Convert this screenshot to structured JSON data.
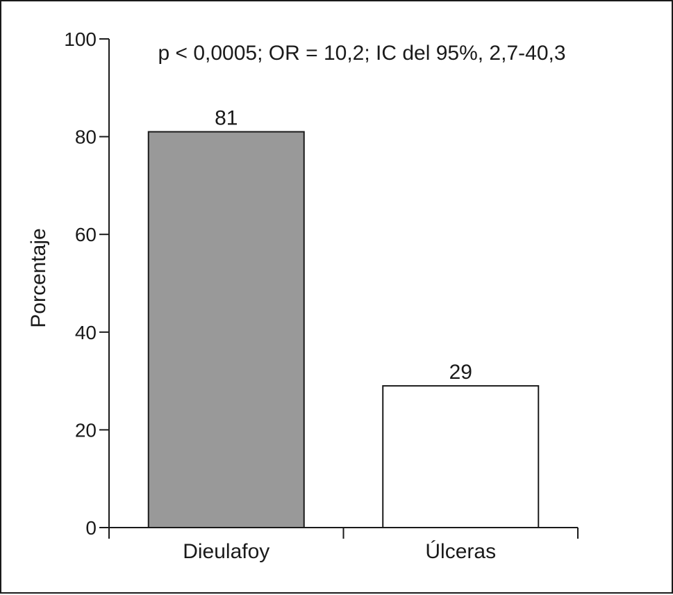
{
  "chart_data": {
    "type": "bar",
    "categories": [
      "Dieulafoy",
      "Úlceras"
    ],
    "values": [
      81,
      29
    ],
    "data_labels": [
      "81",
      "29"
    ],
    "bar_colors": [
      "#999999",
      "#ffffff"
    ],
    "annotation": "p < 0,0005; OR = 10,2; IC del 95%, 2,7-40,3",
    "title": "",
    "xlabel": "",
    "ylabel": "Porcentaje",
    "ylim": [
      0,
      100
    ],
    "yticks": [
      0,
      20,
      40,
      60,
      80,
      100
    ],
    "ytick_labels": [
      "0",
      "20",
      "40",
      "60",
      "80",
      "100"
    ],
    "grid": false,
    "legend": false
  }
}
